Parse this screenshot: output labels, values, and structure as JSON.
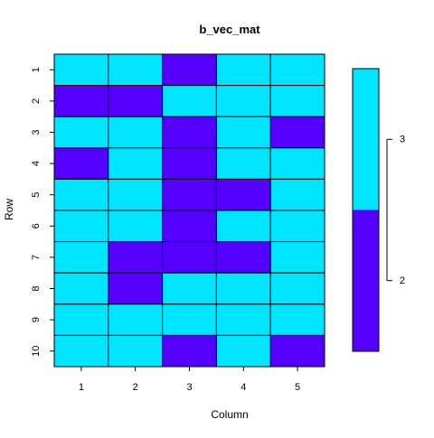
{
  "chart_data": {
    "type": "heatmap",
    "title": "b_vec_mat",
    "xlabel": "Column",
    "ylabel": "Row",
    "x_categories": [
      "1",
      "2",
      "3",
      "4",
      "5"
    ],
    "y_categories": [
      "1",
      "2",
      "3",
      "4",
      "5",
      "6",
      "7",
      "8",
      "9",
      "10"
    ],
    "values": [
      [
        3,
        3,
        2,
        3,
        3
      ],
      [
        2,
        2,
        3,
        3,
        3
      ],
      [
        3,
        3,
        2,
        3,
        2
      ],
      [
        2,
        3,
        2,
        3,
        3
      ],
      [
        3,
        3,
        2,
        2,
        3
      ],
      [
        3,
        3,
        2,
        3,
        3
      ],
      [
        3,
        2,
        2,
        2,
        3
      ],
      [
        3,
        2,
        3,
        3,
        3
      ],
      [
        3,
        3,
        3,
        3,
        3
      ],
      [
        3,
        3,
        2,
        3,
        2
      ]
    ],
    "colors": {
      "2": "#5500ff",
      "3": "#00e5ff"
    },
    "legend": {
      "placement": "right",
      "ticks": [
        "3",
        "2"
      ],
      "range": [
        2,
        3
      ]
    },
    "grid": false
  }
}
